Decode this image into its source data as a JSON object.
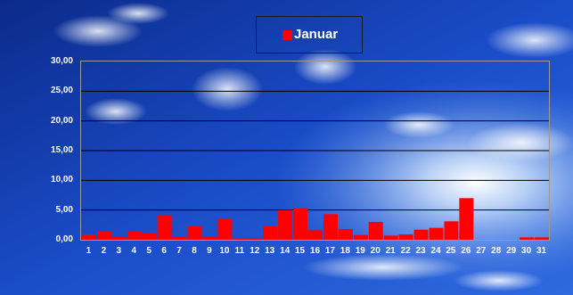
{
  "legend": {
    "label": "Januar",
    "color": "#ff0000"
  },
  "chart_data": {
    "type": "bar",
    "categories": [
      "1",
      "2",
      "3",
      "4",
      "5",
      "6",
      "7",
      "8",
      "9",
      "10",
      "11",
      "12",
      "13",
      "14",
      "15",
      "16",
      "17",
      "18",
      "19",
      "20",
      "21",
      "22",
      "23",
      "24",
      "25",
      "26",
      "27",
      "28",
      "29",
      "30",
      "31"
    ],
    "series": [
      {
        "name": "Januar",
        "color": "#ff0000",
        "values": [
          0.9,
          1.4,
          0.5,
          1.5,
          1.2,
          4.1,
          0.6,
          2.3,
          0.5,
          3.6,
          0.3,
          0.3,
          2.3,
          5.0,
          5.3,
          1.6,
          4.3,
          1.8,
          0.8,
          3.0,
          0.7,
          0.9,
          1.7,
          2.0,
          3.1,
          7.0,
          0.0,
          0.0,
          0.0,
          0.4,
          0.4
        ]
      }
    ],
    "ylim": [
      0,
      30
    ],
    "yticks": [
      "0,00",
      "5,00",
      "10,00",
      "15,00",
      "20,00",
      "25,00",
      "30,00"
    ],
    "grid": true,
    "legend_position": "top"
  }
}
